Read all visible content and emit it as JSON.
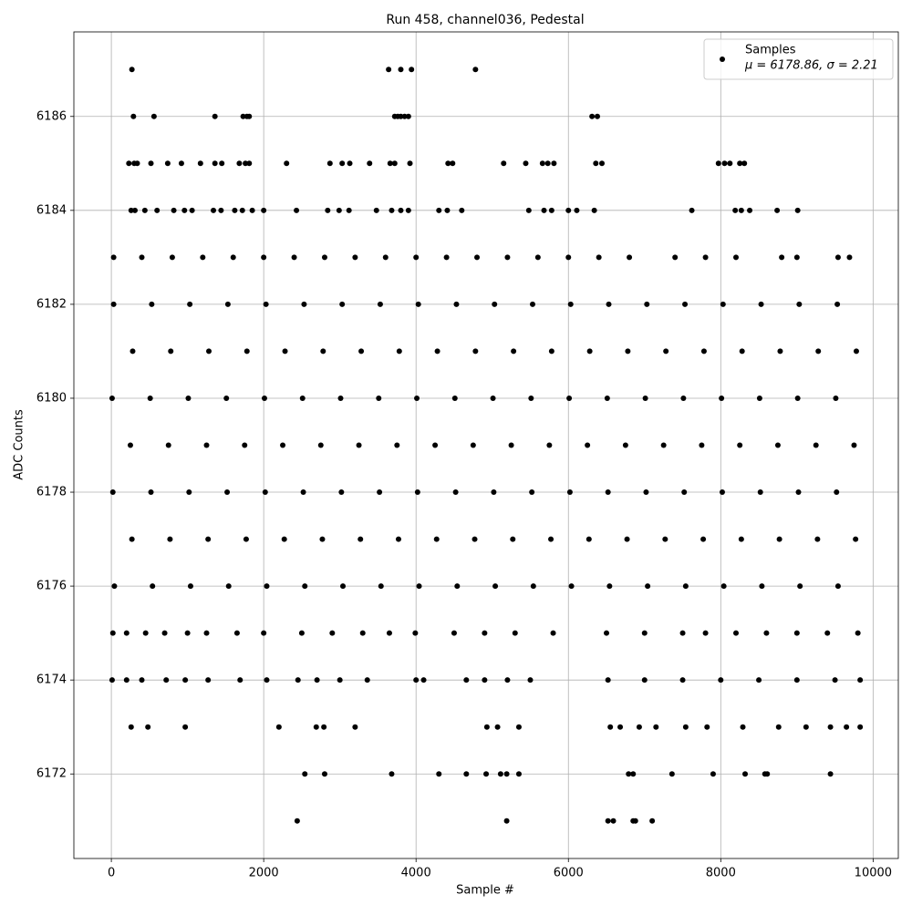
{
  "chart_data": {
    "type": "scatter",
    "title": "Run 458, channel036, Pedestal",
    "x_label": "Sample #",
    "y_label": "ADC Counts",
    "xlim": [
      -492,
      10331
    ],
    "ylim": [
      6170.2,
      6187.8
    ],
    "xticks": [
      0,
      2000,
      4000,
      6000,
      8000,
      10000
    ],
    "yticks": [
      6172,
      6174,
      6176,
      6178,
      6180,
      6182,
      6184,
      6186
    ],
    "grid": true,
    "legend": "upper right",
    "series": [
      {
        "name": "Samples",
        "stats_label": "μ = 6178.86, σ = 2.21",
        "color": "#000000",
        "x": [
          270,
          3640,
          3800,
          3940,
          4780,
          290,
          560,
          1360,
          1730,
          1780,
          1810,
          3720,
          3760,
          3800,
          3850,
          3900,
          6310,
          6380,
          230,
          300,
          340,
          520,
          740,
          920,
          1170,
          1360,
          1450,
          1680,
          1760,
          1810,
          2300,
          2870,
          3030,
          3130,
          3390,
          3660,
          3720,
          3920,
          4420,
          4480,
          5150,
          5440,
          5660,
          5730,
          5810,
          6360,
          6440,
          7970,
          8050,
          8120,
          8250,
          8310,
          260,
          310,
          440,
          600,
          820,
          960,
          1060,
          1340,
          1440,
          1620,
          1720,
          1850,
          2000,
          2430,
          2840,
          2990,
          3120,
          3480,
          3680,
          3800,
          3900,
          4300,
          4410,
          4600,
          5480,
          5680,
          5780,
          6000,
          6110,
          6340,
          7620,
          8190,
          8270,
          8380,
          8740,
          9010,
          30,
          400,
          800,
          1200,
          1600,
          2000,
          2400,
          2800,
          3200,
          3600,
          4000,
          4400,
          4800,
          5200,
          5600,
          6000,
          6400,
          6800,
          7400,
          7800,
          8200,
          8800,
          9000,
          9540,
          9690,
          30,
          530,
          1030,
          1530,
          2030,
          2530,
          3030,
          3530,
          4030,
          4530,
          5030,
          5530,
          6030,
          6530,
          7030,
          7530,
          8030,
          8530,
          9030,
          9530,
          280,
          780,
          1280,
          1780,
          2280,
          2780,
          3280,
          3780,
          4280,
          4780,
          5280,
          5780,
          6280,
          6780,
          7280,
          7780,
          8280,
          8780,
          9280,
          9780,
          10,
          510,
          1010,
          1510,
          2010,
          2510,
          3010,
          3510,
          4010,
          4510,
          5010,
          5510,
          6010,
          6510,
          7010,
          7510,
          8010,
          8510,
          9010,
          9510,
          250,
          750,
          1250,
          1750,
          2250,
          2750,
          3250,
          3750,
          4250,
          4750,
          5250,
          5750,
          6250,
          6750,
          7250,
          7750,
          8250,
          8750,
          9250,
          9750,
          20,
          520,
          1020,
          1520,
          2020,
          2520,
          3020,
          3520,
          4020,
          4520,
          5020,
          5520,
          6020,
          6520,
          7020,
          7520,
          8020,
          8520,
          9020,
          9520,
          270,
          770,
          1270,
          1770,
          2270,
          2770,
          3270,
          3770,
          4270,
          4770,
          5270,
          5770,
          6270,
          6770,
          7270,
          7770,
          8270,
          8770,
          9270,
          9770,
          40,
          540,
          1040,
          1540,
          2040,
          2540,
          3040,
          3540,
          4040,
          4540,
          5040,
          5540,
          6040,
          6540,
          7040,
          7540,
          8040,
          8540,
          9040,
          9540,
          20,
          200,
          450,
          700,
          1000,
          1250,
          1650,
          2000,
          2500,
          2900,
          3300,
          3650,
          3990,
          4500,
          4900,
          5300,
          5800,
          6500,
          7000,
          7500,
          7800,
          8200,
          8600,
          9000,
          9400,
          9800,
          10,
          200,
          400,
          720,
          970,
          1270,
          1690,
          2040,
          2450,
          2700,
          3000,
          3360,
          4000,
          4100,
          4660,
          4900,
          5200,
          5500,
          6520,
          7000,
          7500,
          8000,
          8500,
          9000,
          9500,
          9830,
          260,
          480,
          970,
          2200,
          2690,
          2790,
          3200,
          4930,
          5070,
          5350,
          6550,
          6680,
          6930,
          7150,
          7540,
          7820,
          8290,
          8760,
          9120,
          9440,
          9650,
          9830,
          2540,
          2800,
          3680,
          4300,
          4660,
          4920,
          5110,
          5190,
          5350,
          6790,
          6850,
          7360,
          7900,
          8320,
          8580,
          8610,
          9440,
          2440,
          5190,
          6520,
          6590,
          6850,
          6880,
          7100
        ],
        "values": [
          6187,
          6187,
          6187,
          6187,
          6187,
          6186,
          6186,
          6186,
          6186,
          6186,
          6186,
          6186,
          6186,
          6186,
          6186,
          6186,
          6186,
          6186,
          6185,
          6185,
          6185,
          6185,
          6185,
          6185,
          6185,
          6185,
          6185,
          6185,
          6185,
          6185,
          6185,
          6185,
          6185,
          6185,
          6185,
          6185,
          6185,
          6185,
          6185,
          6185,
          6185,
          6185,
          6185,
          6185,
          6185,
          6185,
          6185,
          6185,
          6185,
          6185,
          6185,
          6185,
          6184,
          6184,
          6184,
          6184,
          6184,
          6184,
          6184,
          6184,
          6184,
          6184,
          6184,
          6184,
          6184,
          6184,
          6184,
          6184,
          6184,
          6184,
          6184,
          6184,
          6184,
          6184,
          6184,
          6184,
          6184,
          6184,
          6184,
          6184,
          6184,
          6184,
          6184,
          6184,
          6184,
          6184,
          6184,
          6184,
          6183,
          6183,
          6183,
          6183,
          6183,
          6183,
          6183,
          6183,
          6183,
          6183,
          6183,
          6183,
          6183,
          6183,
          6183,
          6183,
          6183,
          6183,
          6183,
          6183,
          6183,
          6183,
          6183,
          6183,
          6183,
          6182,
          6182,
          6182,
          6182,
          6182,
          6182,
          6182,
          6182,
          6182,
          6182,
          6182,
          6182,
          6182,
          6182,
          6182,
          6182,
          6182,
          6182,
          6182,
          6182,
          6181,
          6181,
          6181,
          6181,
          6181,
          6181,
          6181,
          6181,
          6181,
          6181,
          6181,
          6181,
          6181,
          6181,
          6181,
          6181,
          6181,
          6181,
          6181,
          6181,
          6180,
          6180,
          6180,
          6180,
          6180,
          6180,
          6180,
          6180,
          6180,
          6180,
          6180,
          6180,
          6180,
          6180,
          6180,
          6180,
          6180,
          6180,
          6180,
          6180,
          6179,
          6179,
          6179,
          6179,
          6179,
          6179,
          6179,
          6179,
          6179,
          6179,
          6179,
          6179,
          6179,
          6179,
          6179,
          6179,
          6179,
          6179,
          6179,
          6179,
          6178,
          6178,
          6178,
          6178,
          6178,
          6178,
          6178,
          6178,
          6178,
          6178,
          6178,
          6178,
          6178,
          6178,
          6178,
          6178,
          6178,
          6178,
          6178,
          6178,
          6177,
          6177,
          6177,
          6177,
          6177,
          6177,
          6177,
          6177,
          6177,
          6177,
          6177,
          6177,
          6177,
          6177,
          6177,
          6177,
          6177,
          6177,
          6177,
          6177,
          6176,
          6176,
          6176,
          6176,
          6176,
          6176,
          6176,
          6176,
          6176,
          6176,
          6176,
          6176,
          6176,
          6176,
          6176,
          6176,
          6176,
          6176,
          6176,
          6176,
          6175,
          6175,
          6175,
          6175,
          6175,
          6175,
          6175,
          6175,
          6175,
          6175,
          6175,
          6175,
          6175,
          6175,
          6175,
          6175,
          6175,
          6175,
          6175,
          6175,
          6175,
          6175,
          6175,
          6175,
          6175,
          6175,
          6174,
          6174,
          6174,
          6174,
          6174,
          6174,
          6174,
          6174,
          6174,
          6174,
          6174,
          6174,
          6174,
          6174,
          6174,
          6174,
          6174,
          6174,
          6174,
          6174,
          6174,
          6174,
          6174,
          6174,
          6174,
          6174,
          6173,
          6173,
          6173,
          6173,
          6173,
          6173,
          6173,
          6173,
          6173,
          6173,
          6173,
          6173,
          6173,
          6173,
          6173,
          6173,
          6173,
          6173,
          6173,
          6173,
          6173,
          6173,
          6172,
          6172,
          6172,
          6172,
          6172,
          6172,
          6172,
          6172,
          6172,
          6172,
          6172,
          6172,
          6172,
          6172,
          6172,
          6172,
          6172,
          6171,
          6171,
          6171,
          6171,
          6171,
          6171,
          6171
        ]
      }
    ]
  }
}
